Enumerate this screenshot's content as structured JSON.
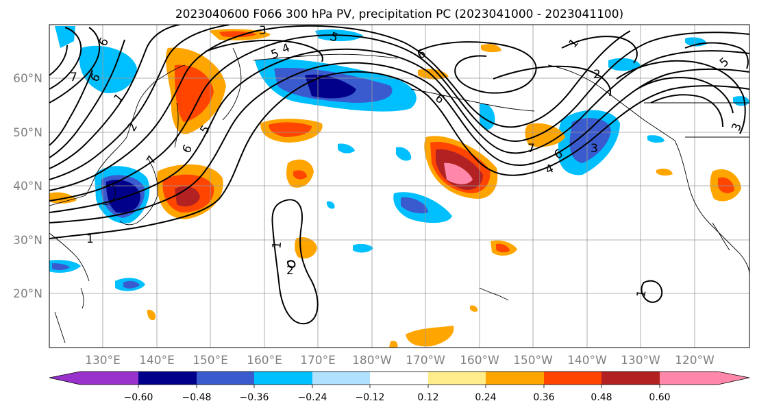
{
  "title": "2023040600 F066 300 hPa PV, precipitation PC (2023041000 - 2023041100)",
  "lat_labels": [
    "60°N",
    "50°N",
    "40°N",
    "30°N",
    "20°N"
  ],
  "lon_labels": [
    "130°E",
    "140°E",
    "150°E",
    "160°E",
    "170°E",
    "180°W",
    "170°W",
    "160°W",
    "150°W",
    "140°W",
    "130°W",
    "120°W"
  ],
  "colorbar": {
    "tick_labels": [
      "−0.60",
      "−0.48",
      "−0.36",
      "−0.24",
      "−0.12",
      "0.12",
      "0.24",
      "0.36",
      "0.48",
      "0.60"
    ],
    "colors": [
      "#9932cc",
      "#00008b",
      "#3a5bcd",
      "#00bfff",
      "#b0e2ff",
      "#ffffff",
      "#ffec8b",
      "#ffa500",
      "#ff4500",
      "#b22222",
      "#ff88aa"
    ]
  },
  "pv_contour_labels": {
    "one": "1",
    "two": "2",
    "three": "3",
    "four": "4",
    "five": "5",
    "six": "6",
    "seven": "7"
  }
}
